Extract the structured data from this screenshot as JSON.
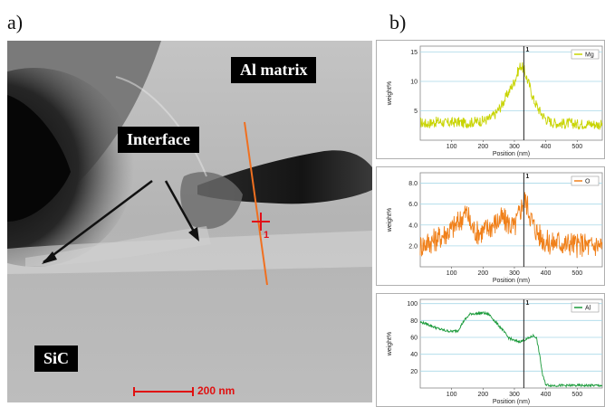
{
  "panel_labels": {
    "a": "a)",
    "b": "b)"
  },
  "micrograph": {
    "labels": {
      "al_matrix": "Al matrix",
      "interface": "Interface",
      "sic": "SiC"
    },
    "scale_bar": "200 nm",
    "marker_label": "1"
  },
  "chart_data": [
    {
      "type": "line",
      "element": "Mg",
      "color": "#c8d400",
      "xlabel": "Position (nm)",
      "ylabel": "weight%",
      "xlim": [
        0,
        580
      ],
      "ylim": [
        0,
        16
      ],
      "xticks": [
        100,
        200,
        300,
        400,
        500
      ],
      "yticks": [
        5,
        10,
        15
      ],
      "marker_x": 330,
      "marker_label": "1",
      "series": [
        {
          "name": "Mg",
          "x": [
            0,
            20,
            40,
            60,
            80,
            100,
            120,
            140,
            160,
            180,
            200,
            220,
            240,
            260,
            280,
            300,
            310,
            320,
            330,
            340,
            350,
            360,
            380,
            400,
            420,
            440,
            460,
            480,
            500,
            520,
            540,
            560,
            580
          ],
          "y": [
            3,
            2.8,
            3,
            3.2,
            2.9,
            3,
            3.1,
            2.9,
            3,
            3.2,
            3.3,
            3.6,
            4.5,
            6,
            8,
            10,
            11.5,
            12.8,
            12,
            10.5,
            9,
            7,
            5,
            3.6,
            3,
            2.9,
            2.8,
            2.9,
            2.7,
            2.8,
            2.8,
            2.7,
            2.6
          ],
          "noise": 0.9
        }
      ]
    },
    {
      "type": "line",
      "element": "O",
      "color": "#f0801a",
      "xlabel": "Position (nm)",
      "ylabel": "weight%",
      "xlim": [
        0,
        580
      ],
      "ylim": [
        0,
        9
      ],
      "xticks": [
        100,
        200,
        300,
        400,
        500
      ],
      "yticks": [
        2.0,
        4.0,
        6.0,
        8.0
      ],
      "marker_x": 330,
      "marker_label": "1",
      "series": [
        {
          "name": "O",
          "x": [
            0,
            20,
            40,
            60,
            80,
            100,
            120,
            140,
            150,
            160,
            180,
            200,
            220,
            240,
            260,
            280,
            300,
            320,
            330,
            340,
            360,
            380,
            400,
            420,
            440,
            460,
            480,
            500,
            520,
            540,
            560,
            580
          ],
          "y": [
            2,
            2.3,
            2.5,
            2.8,
            3.2,
            3.6,
            4.2,
            5,
            5.2,
            4,
            3.3,
            3.4,
            3.8,
            4.2,
            4.6,
            4.2,
            3.7,
            5.5,
            6.5,
            6,
            4,
            3,
            2.4,
            2.2,
            2.5,
            2.1,
            2.3,
            2,
            2.2,
            1.9,
            2.1,
            2
          ],
          "noise": 1.2
        }
      ]
    },
    {
      "type": "line",
      "element": "Al",
      "color": "#1a9a3a",
      "xlabel": "Position (nm)",
      "ylabel": "weight%",
      "xlim": [
        0,
        580
      ],
      "ylim": [
        0,
        105
      ],
      "xticks": [
        100,
        200,
        300,
        400,
        500
      ],
      "yticks": [
        20,
        40,
        60,
        80,
        100
      ],
      "marker_x": 330,
      "marker_label": "1",
      "series": [
        {
          "name": "Al",
          "x": [
            0,
            20,
            40,
            60,
            80,
            100,
            120,
            140,
            160,
            180,
            200,
            220,
            240,
            260,
            280,
            300,
            320,
            340,
            360,
            370,
            380,
            390,
            400,
            420,
            440,
            460,
            480,
            500,
            520,
            540,
            560,
            580
          ],
          "y": [
            78,
            76,
            73,
            70,
            68,
            67,
            68,
            80,
            88,
            88,
            89,
            87,
            78,
            70,
            60,
            56,
            55,
            58,
            62,
            60,
            40,
            15,
            4,
            3,
            3,
            3,
            3,
            3,
            3,
            3,
            3,
            3
          ],
          "noise": 1.5
        }
      ]
    }
  ]
}
